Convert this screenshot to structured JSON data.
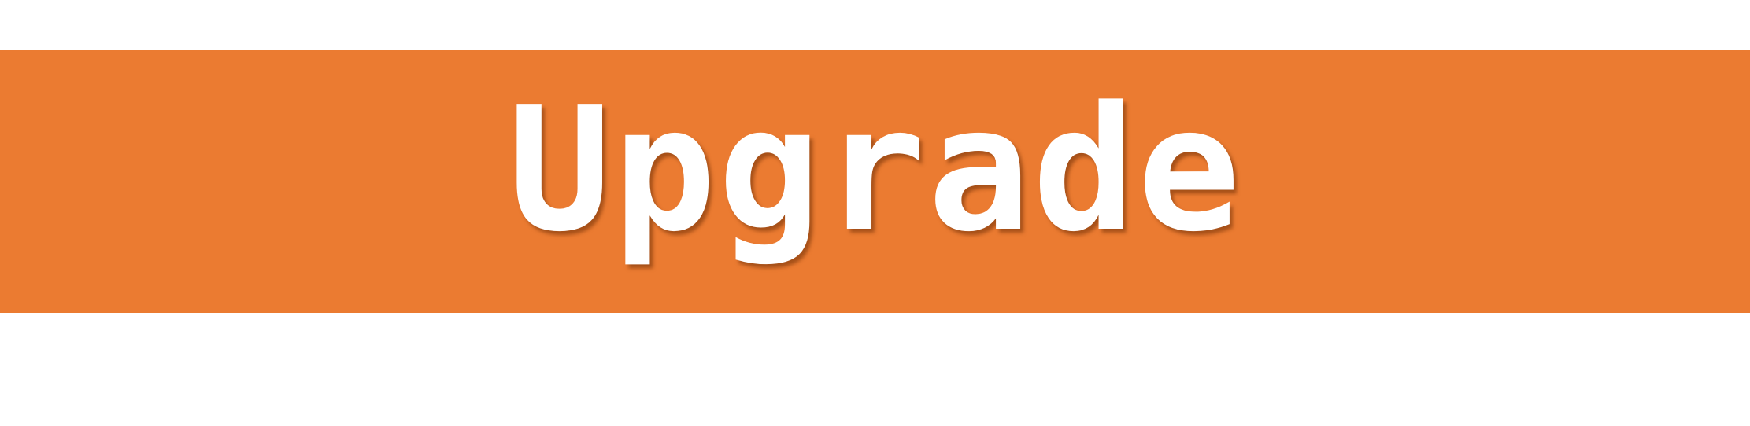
{
  "banner": {
    "text": "Upgrade",
    "background_color": "#eb7b31",
    "text_color": "#ffffff"
  }
}
